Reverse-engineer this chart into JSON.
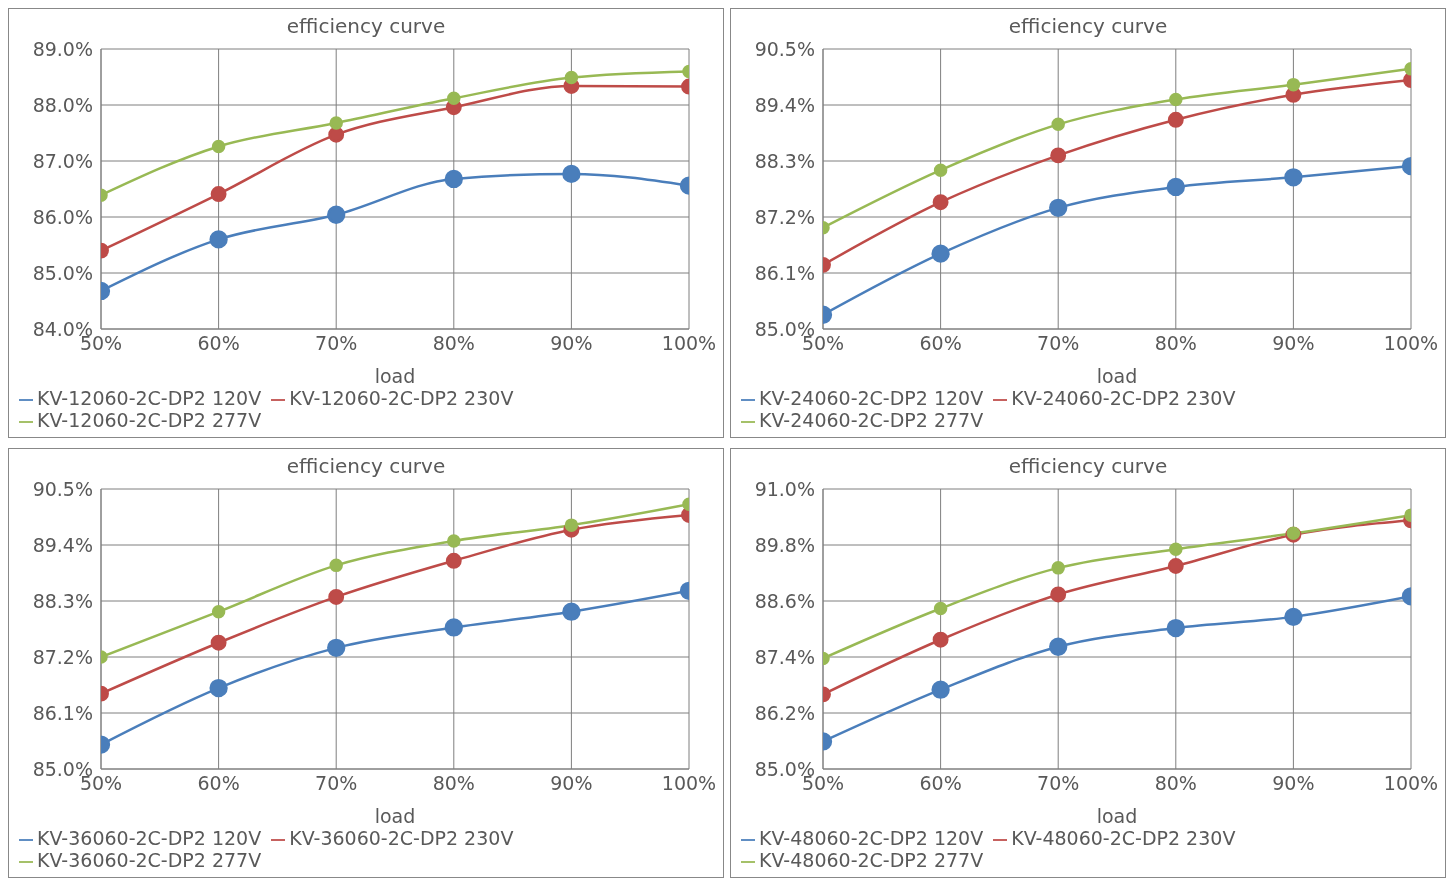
{
  "chart_data": [
    {
      "type": "line",
      "title": "efficiency curve",
      "xlabel": "load",
      "categories": [
        "50%",
        "60%",
        "70%",
        "80%",
        "90%",
        "100%"
      ],
      "ylim": [
        84,
        89
      ],
      "yticks": [
        {
          "value": 84,
          "label": "84.0%"
        },
        {
          "value": 85,
          "label": "85.0%"
        },
        {
          "value": 86,
          "label": "86.0%"
        },
        {
          "value": 87,
          "label": "87.0%"
        },
        {
          "value": 88,
          "label": "88.0%"
        },
        {
          "value": 89,
          "label": "89.0%"
        }
      ],
      "grid": true,
      "legend": "bottom",
      "marker": "circle",
      "line_style": "solid",
      "series": [
        {
          "name": "KV-12060-2C-DP2 120V",
          "color": "#4a7ebb",
          "values": [
            84.68,
            85.6,
            86.04,
            86.68,
            86.77,
            86.56
          ]
        },
        {
          "name": "KV-12060-2C-DP2 230V",
          "color": "#be4b48",
          "values": [
            85.4,
            86.41,
            87.47,
            87.96,
            88.34,
            88.33
          ]
        },
        {
          "name": "KV-12060-2C-DP2 277V",
          "color": "#98b954",
          "values": [
            86.39,
            87.26,
            87.68,
            88.12,
            88.49,
            88.6
          ]
        }
      ]
    },
    {
      "type": "line",
      "title": "efficiency curve",
      "xlabel": "load",
      "categories": [
        "50%",
        "60%",
        "70%",
        "80%",
        "90%",
        "100%"
      ],
      "ylim": [
        85,
        90.5
      ],
      "yticks": [
        {
          "value": 85,
          "label": "85.0%"
        },
        {
          "value": 86.1,
          "label": "86.1%"
        },
        {
          "value": 87.2,
          "label": "87.2%"
        },
        {
          "value": 88.3,
          "label": "88.3%"
        },
        {
          "value": 89.4,
          "label": "89.4%"
        },
        {
          "value": 90.5,
          "label": "90.5%"
        }
      ],
      "grid": true,
      "legend": "bottom",
      "marker": "circle",
      "line_style": "solid",
      "series": [
        {
          "name": "KV-24060-2C-DP2 120V",
          "color": "#4a7ebb",
          "values": [
            85.28,
            86.48,
            87.38,
            87.79,
            87.98,
            88.2
          ]
        },
        {
          "name": "KV-24060-2C-DP2 230V",
          "color": "#be4b48",
          "values": [
            86.26,
            87.49,
            88.41,
            89.11,
            89.6,
            89.89
          ]
        },
        {
          "name": "KV-24060-2C-DP2 277V",
          "color": "#98b954",
          "values": [
            86.99,
            88.12,
            89.02,
            89.51,
            89.8,
            90.11
          ]
        }
      ]
    },
    {
      "type": "line",
      "title": "efficiency curve",
      "xlabel": "load",
      "categories": [
        "50%",
        "60%",
        "70%",
        "80%",
        "90%",
        "100%"
      ],
      "ylim": [
        85,
        90.5
      ],
      "yticks": [
        {
          "value": 85,
          "label": "85.0%"
        },
        {
          "value": 86.1,
          "label": "86.1%"
        },
        {
          "value": 87.2,
          "label": "87.2%"
        },
        {
          "value": 88.3,
          "label": "88.3%"
        },
        {
          "value": 89.4,
          "label": "89.4%"
        },
        {
          "value": 90.5,
          "label": "90.5%"
        }
      ],
      "grid": true,
      "legend": "bottom",
      "marker": "circle",
      "line_style": "solid",
      "series": [
        {
          "name": "KV-36060-2C-DP2 120V",
          "color": "#4a7ebb",
          "values": [
            85.48,
            86.59,
            87.38,
            87.78,
            88.09,
            88.5
          ]
        },
        {
          "name": "KV-36060-2C-DP2 230V",
          "color": "#be4b48",
          "values": [
            86.48,
            87.48,
            88.38,
            89.09,
            89.7,
            89.99
          ]
        },
        {
          "name": "KV-36060-2C-DP2 277V",
          "color": "#98b954",
          "values": [
            87.2,
            88.09,
            89.0,
            89.48,
            89.79,
            90.2
          ]
        }
      ]
    },
    {
      "type": "line",
      "title": "efficiency curve",
      "xlabel": "load",
      "categories": [
        "50%",
        "60%",
        "70%",
        "80%",
        "90%",
        "100%"
      ],
      "ylim": [
        85,
        91
      ],
      "yticks": [
        {
          "value": 85,
          "label": "85.0%"
        },
        {
          "value": 86.2,
          "label": "86.2%"
        },
        {
          "value": 87.4,
          "label": "87.4%"
        },
        {
          "value": 88.6,
          "label": "88.6%"
        },
        {
          "value": 89.8,
          "label": "89.8%"
        },
        {
          "value": 91,
          "label": "91.0%"
        }
      ],
      "grid": true,
      "legend": "bottom",
      "marker": "circle",
      "line_style": "solid",
      "series": [
        {
          "name": "KV-48060-2C-DP2 120V",
          "color": "#4a7ebb",
          "values": [
            85.59,
            86.7,
            87.62,
            88.02,
            88.26,
            88.7
          ]
        },
        {
          "name": "KV-48060-2C-DP2 230V",
          "color": "#be4b48",
          "values": [
            86.6,
            87.77,
            88.74,
            89.35,
            90.02,
            90.33
          ]
        },
        {
          "name": "KV-48060-2C-DP2 277V",
          "color": "#98b954",
          "values": [
            87.37,
            88.44,
            89.31,
            89.71,
            90.05,
            90.44
          ]
        }
      ]
    }
  ]
}
